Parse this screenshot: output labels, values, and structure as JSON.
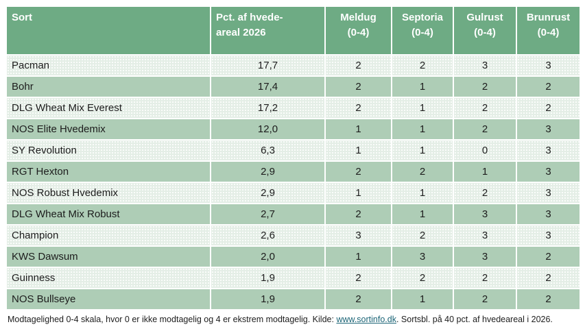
{
  "table": {
    "columns": [
      {
        "label": "Sort",
        "align": "left"
      },
      {
        "label": "Pct. af hvede-\nareal 2026",
        "align": "left"
      },
      {
        "label": "Meldug\n(0-4)",
        "align": "center"
      },
      {
        "label": "Septoria\n(0-4)",
        "align": "center"
      },
      {
        "label": "Gulrust\n(0-4)",
        "align": "center"
      },
      {
        "label": "Brunrust\n(0-4)",
        "align": "center"
      }
    ],
    "rows": [
      [
        "Pacman",
        "17,7",
        "2",
        "2",
        "3",
        "3"
      ],
      [
        "Bohr",
        "17,4",
        "2",
        "1",
        "2",
        "2"
      ],
      [
        "DLG Wheat Mix Everest",
        "17,2",
        "2",
        "1",
        "2",
        "2"
      ],
      [
        "NOS Elite Hvedemix",
        "12,0",
        "1",
        "1",
        "2",
        "3"
      ],
      [
        "SY Revolution",
        "6,3",
        "1",
        "1",
        "0",
        "3"
      ],
      [
        "RGT Hexton",
        "2,9",
        "2",
        "2",
        "1",
        "3"
      ],
      [
        "NOS Robust Hvedemix",
        "2,9",
        "1",
        "1",
        "2",
        "3"
      ],
      [
        "DLG Wheat Mix Robust",
        "2,7",
        "2",
        "1",
        "3",
        "3"
      ],
      [
        "Champion",
        "2,6",
        "3",
        "2",
        "3",
        "3"
      ],
      [
        "KWS Dawsum",
        "2,0",
        "1",
        "3",
        "3",
        "2"
      ],
      [
        "Guinness",
        "1,9",
        "2",
        "2",
        "2",
        "2"
      ],
      [
        "NOS Bullseye",
        "1,9",
        "2",
        "1",
        "2",
        "2"
      ]
    ]
  },
  "footer": {
    "text_before_link": "Modtagelighed 0-4 skala, hvor 0 er ikke modtagelig og 4 er ekstrem modtagelig. Kilde: ",
    "link_label": "www.sortinfo.dk",
    "text_after_link": ". Sortsbl. på 40 pct. af hvedeareal i 2026."
  },
  "colors": {
    "header_bg": "#6EAB84",
    "row_light_bg": "#E8F1EA",
    "row_dark_bg": "#AECDB6",
    "header_text": "#FFFFFF",
    "body_text": "#1C1C1C",
    "link": "#1C6577"
  },
  "chart_data": {
    "type": "table",
    "title": "",
    "columns": [
      "Sort",
      "Pct. af hvede-areal 2026",
      "Meldug (0-4)",
      "Septoria (0-4)",
      "Gulrust (0-4)",
      "Brunrust (0-4)"
    ],
    "rows": [
      [
        "Pacman",
        17.7,
        2,
        2,
        3,
        3
      ],
      [
        "Bohr",
        17.4,
        2,
        1,
        2,
        2
      ],
      [
        "DLG Wheat Mix Everest",
        17.2,
        2,
        1,
        2,
        2
      ],
      [
        "NOS Elite Hvedemix",
        12.0,
        1,
        1,
        2,
        3
      ],
      [
        "SY Revolution",
        6.3,
        1,
        1,
        0,
        3
      ],
      [
        "RGT Hexton",
        2.9,
        2,
        2,
        1,
        3
      ],
      [
        "NOS Robust Hvedemix",
        2.9,
        1,
        1,
        2,
        3
      ],
      [
        "DLG Wheat Mix Robust",
        2.7,
        2,
        1,
        3,
        3
      ],
      [
        "Champion",
        2.6,
        3,
        2,
        3,
        3
      ],
      [
        "KWS Dawsum",
        2.0,
        1,
        3,
        3,
        2
      ],
      [
        "Guinness",
        1.9,
        2,
        2,
        2,
        2
      ],
      [
        "NOS Bullseye",
        1.9,
        2,
        1,
        2,
        2
      ]
    ],
    "note": "Modtagelighed 0-4 skala, hvor 0 er ikke modtagelig og 4 er ekstrem modtagelig. Kilde: www.sortinfo.dk. Sortsbl. på 40 pct. af hvedeareal i 2026."
  }
}
